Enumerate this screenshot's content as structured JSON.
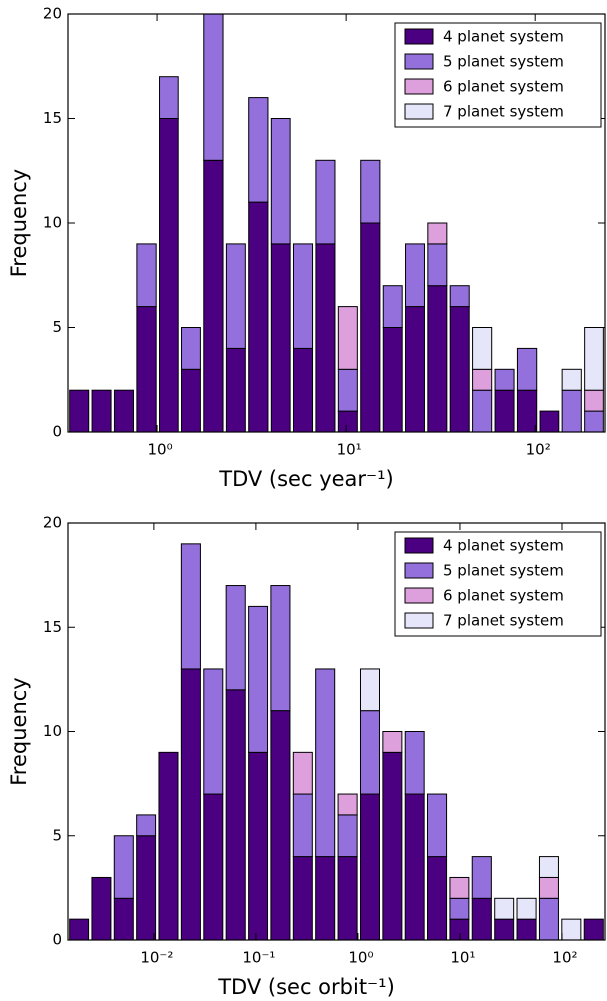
{
  "chart_data": [
    {
      "type": "histogram",
      "xlabel": "TDV (sec year⁻¹)",
      "ylabel": "Frequency",
      "xscale": "log",
      "stacked": true,
      "legend": "upper right",
      "bins": [
        0.338,
        0.444,
        0.583,
        0.766,
        1.01,
        1.32,
        1.73,
        2.28,
        2.99,
        3.94,
        5.16,
        6.78,
        8.91,
        11.7,
        15.4,
        20.2,
        26.5,
        34.8,
        45.7,
        60.1,
        78.9,
        104,
        136,
        179,
        234
      ],
      "xlim": [
        0.338,
        234
      ],
      "xticks": [
        {
          "value": 1,
          "label": "10⁰"
        },
        {
          "value": 10,
          "label": "10¹"
        },
        {
          "value": 100,
          "label": "10²"
        }
      ],
      "ylim": [
        0,
        20
      ],
      "yticks": [
        0,
        5,
        10,
        15,
        20
      ],
      "series": [
        {
          "name": "4 planet system",
          "color": "#4b0082",
          "values": [
            2,
            2,
            2,
            6,
            15,
            3,
            13,
            4,
            11,
            9,
            4,
            9,
            1,
            10,
            5,
            6,
            7,
            6,
            0,
            2,
            2,
            1,
            0,
            0
          ]
        },
        {
          "name": "5 planet system",
          "color": "#9370db",
          "values": [
            0,
            0,
            0,
            3,
            2,
            2,
            7,
            5,
            5,
            6,
            5,
            4,
            2,
            3,
            2,
            3,
            2,
            1,
            2,
            1,
            2,
            0,
            2,
            1
          ]
        },
        {
          "name": "6 planet system",
          "color": "#dda0dd",
          "values": [
            0,
            0,
            0,
            0,
            0,
            0,
            0,
            0,
            0,
            0,
            0,
            0,
            3,
            0,
            0,
            0,
            1,
            0,
            1,
            0,
            0,
            0,
            0,
            1
          ]
        },
        {
          "name": "7 planet system",
          "color": "#e6e6fa",
          "values": [
            0,
            0,
            0,
            0,
            0,
            0,
            0,
            0,
            0,
            0,
            0,
            0,
            0,
            0,
            0,
            0,
            0,
            0,
            2,
            0,
            0,
            0,
            1,
            3
          ]
        }
      ]
    },
    {
      "type": "histogram",
      "xlabel": "TDV (sec orbit⁻¹)",
      "ylabel": "Frequency",
      "xscale": "log",
      "stacked": true,
      "legend": "upper right",
      "bins": [
        0.00144,
        0.00238,
        0.00394,
        0.00653,
        0.0108,
        0.0179,
        0.0297,
        0.0492,
        0.0817,
        0.135,
        0.224,
        0.371,
        0.615,
        1.02,
        1.69,
        2.8,
        4.63,
        7.68,
        12.7,
        21.1,
        34.9,
        57.9,
        95.9,
        159,
        264
      ],
      "xlim": [
        0.00144,
        264
      ],
      "xticks": [
        {
          "value": 0.01,
          "label": "10⁻²"
        },
        {
          "value": 0.1,
          "label": "10⁻¹"
        },
        {
          "value": 1,
          "label": "10⁰"
        },
        {
          "value": 10,
          "label": "10¹"
        },
        {
          "value": 100,
          "label": "10²"
        }
      ],
      "ylim": [
        0,
        20
      ],
      "yticks": [
        0,
        5,
        10,
        15,
        20
      ],
      "series": [
        {
          "name": "4 planet system",
          "color": "#4b0082",
          "values": [
            1,
            3,
            2,
            5,
            9,
            13,
            7,
            12,
            9,
            11,
            4,
            4,
            4,
            7,
            9,
            7,
            4,
            1,
            2,
            1,
            1,
            0,
            0,
            1
          ]
        },
        {
          "name": "5 planet system",
          "color": "#9370db",
          "values": [
            0,
            0,
            3,
            1,
            0,
            6,
            6,
            5,
            7,
            6,
            3,
            9,
            2,
            4,
            0,
            3,
            3,
            1,
            2,
            0,
            0,
            2,
            0,
            0
          ]
        },
        {
          "name": "6 planet system",
          "color": "#dda0dd",
          "values": [
            0,
            0,
            0,
            0,
            0,
            0,
            0,
            0,
            0,
            0,
            2,
            0,
            1,
            0,
            1,
            0,
            0,
            1,
            0,
            0,
            0,
            1,
            0,
            0
          ]
        },
        {
          "name": "7 planet system",
          "color": "#e6e6fa",
          "values": [
            0,
            0,
            0,
            0,
            0,
            0,
            0,
            0,
            0,
            0,
            0,
            0,
            0,
            2,
            0,
            0,
            0,
            0,
            0,
            1,
            1,
            1,
            1,
            0
          ]
        }
      ]
    }
  ]
}
